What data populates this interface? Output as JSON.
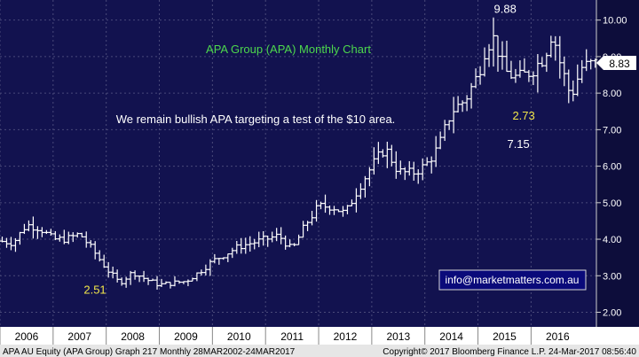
{
  "chart_data": {
    "type": "ohlc",
    "title": "APA Group (APA) Monthly Chart",
    "annotation": "We remain bullish APA targeting a test of the $10 area.",
    "contact": "info@marketmatters.com.au",
    "last_price": "8.83",
    "labels": [
      {
        "text": "2.51",
        "x": 2008.0,
        "y": 2.51,
        "anchor": "end"
      },
      {
        "text": "9.88",
        "x": 2015.3,
        "y": 10.2,
        "anchor": "start"
      },
      {
        "text": "2.73",
        "x": 2015.65,
        "y": 7.28,
        "anchor": "start"
      },
      {
        "text": "7.15",
        "x": 2015.55,
        "y": 6.5,
        "anchor": "start"
      }
    ],
    "x_ticks": [
      "2006",
      "2007",
      "2008",
      "2009",
      "2010",
      "2011",
      "2012",
      "2013",
      "2014",
      "2015",
      "2016"
    ],
    "y_ticks": [
      "2.00",
      "3.00",
      "4.00",
      "5.00",
      "6.00",
      "7.00",
      "8.00",
      "9.00",
      "10.00"
    ],
    "ylim": [
      1.6,
      10.55
    ],
    "xlim": [
      2006.0,
      2017.23
    ],
    "footer": {
      "left": "APA AU Equity (APA Group) Graph 217  Monthly 28MAR2002-24MAR2017",
      "right": "Copyright© 2017 Bloomberg Finance L.P.    24-Mar-2017 08:56:40"
    },
    "anchors": [
      [
        2006.0,
        3.95
      ],
      [
        2006.25,
        3.9
      ],
      [
        2006.5,
        4.4
      ],
      [
        2006.75,
        4.3
      ],
      [
        2007.0,
        4.0
      ],
      [
        2007.25,
        4.0
      ],
      [
        2007.5,
        4.15
      ],
      [
        2007.75,
        3.7
      ],
      [
        2008.0,
        3.2
      ],
      [
        2008.25,
        2.8
      ],
      [
        2008.5,
        3.1
      ],
      [
        2008.75,
        2.9
      ],
      [
        2009.0,
        2.75
      ],
      [
        2009.25,
        2.8
      ],
      [
        2009.5,
        2.85
      ],
      [
        2009.75,
        3.1
      ],
      [
        2010.0,
        3.4
      ],
      [
        2010.25,
        3.6
      ],
      [
        2010.5,
        3.8
      ],
      [
        2010.75,
        3.9
      ],
      [
        2011.0,
        4.0
      ],
      [
        2011.25,
        4.1
      ],
      [
        2011.5,
        3.7
      ],
      [
        2011.75,
        4.4
      ],
      [
        2012.0,
        4.9
      ],
      [
        2012.25,
        4.9
      ],
      [
        2012.5,
        4.7
      ],
      [
        2012.75,
        5.4
      ],
      [
        2013.0,
        6.0
      ],
      [
        2013.25,
        6.5
      ],
      [
        2013.5,
        5.85
      ],
      [
        2013.75,
        5.8
      ],
      [
        2014.0,
        6.0
      ],
      [
        2014.25,
        6.5
      ],
      [
        2014.5,
        7.5
      ],
      [
        2014.75,
        7.8
      ],
      [
        2015.0,
        8.5
      ],
      [
        2015.15,
        9.3
      ],
      [
        2015.3,
        9.5
      ],
      [
        2015.5,
        8.6
      ],
      [
        2015.75,
        8.4
      ],
      [
        2016.0,
        8.6
      ],
      [
        2016.25,
        9.0
      ],
      [
        2016.4,
        9.7
      ],
      [
        2016.55,
        8.8
      ],
      [
        2016.75,
        7.9
      ],
      [
        2016.95,
        8.7
      ],
      [
        2017.15,
        8.8
      ]
    ]
  }
}
